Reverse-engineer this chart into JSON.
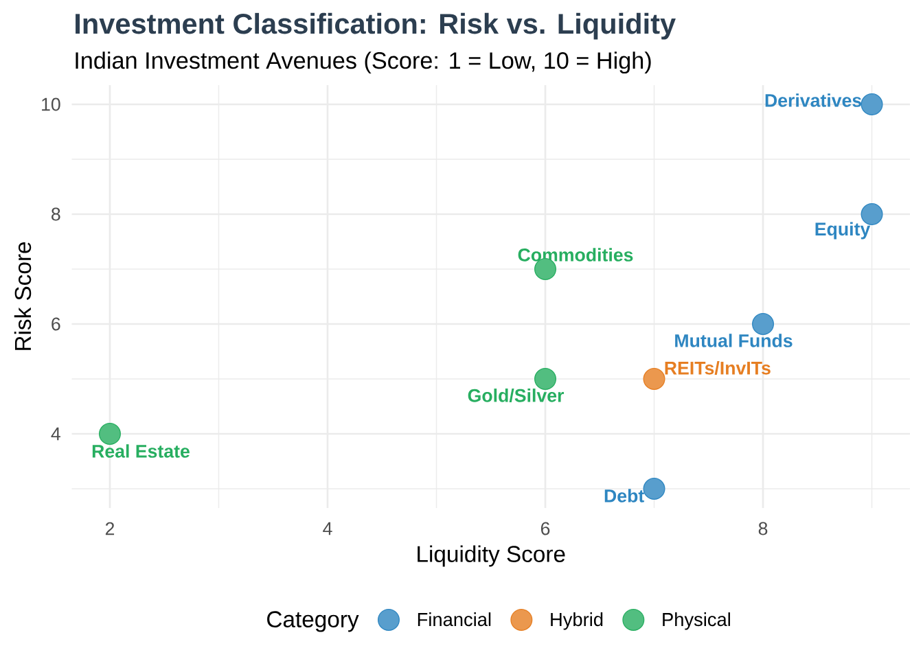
{
  "chart_data": {
    "type": "scatter",
    "title": "Investment Classification: Risk vs. Liquidity",
    "subtitle": "Indian Investment Avenues (Score: 1 = Low, 10 = High)",
    "xlabel": "Liquidity Score",
    "ylabel": "Risk Score",
    "legend_title": "Category",
    "series": [
      {
        "name": "Financial",
        "color": "#2e86c1",
        "x": [
          9,
          9,
          8,
          7
        ],
        "values": [
          10,
          8,
          6,
          3
        ],
        "value_labels": [
          "Derivatives",
          "Equity",
          "Mutual Funds",
          "Debt"
        ]
      },
      {
        "name": "Hybrid",
        "color": "#e67e22",
        "x": [
          7
        ],
        "values": [
          5
        ],
        "value_labels": [
          "REITs/InvITs"
        ]
      },
      {
        "name": "Physical",
        "color": "#27ae60",
        "x": [
          6,
          6,
          2
        ],
        "values": [
          7,
          5,
          4
        ],
        "value_labels": [
          "Commodities",
          "Gold/Silver",
          "Real Estate"
        ]
      }
    ],
    "xlim": [
      1.65,
      9.35
    ],
    "ylim": [
      2.65,
      10.35
    ],
    "xticks": [
      2,
      {
        "value": 3,
        "label": null
      },
      4,
      {
        "value": 5,
        "label": null
      },
      6,
      {
        "value": 7,
        "label": null
      },
      8,
      {
        "value": 9,
        "label": null
      }
    ],
    "yticks": [
      {
        "value": 3,
        "label": null
      },
      4,
      {
        "value": 5,
        "label": null
      },
      6,
      {
        "value": 7,
        "label": null
      },
      8,
      {
        "value": 9,
        "label": null
      },
      10
    ],
    "grid": true,
    "legend": "bottom",
    "marker": "circle"
  }
}
